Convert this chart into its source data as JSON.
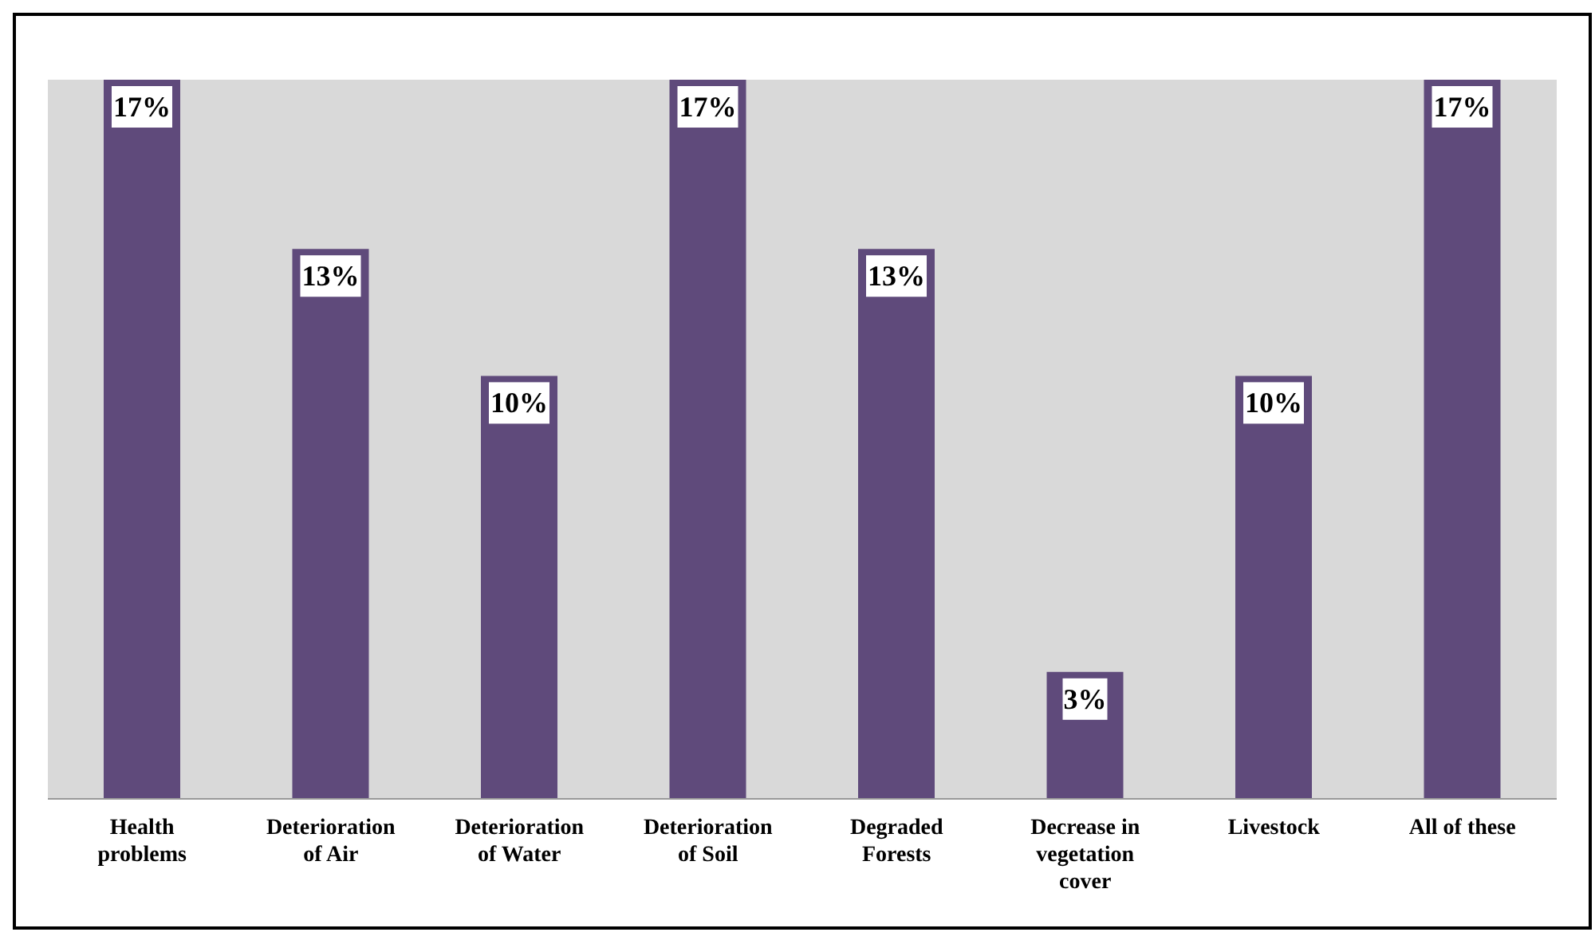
{
  "chart_data": {
    "type": "bar",
    "categories": [
      "Health problems",
      "Deterioration of Air",
      "Deterioration of Water",
      "Deterioration of Soil",
      "Degraded Forests",
      "Decrease in vegetation cover",
      "Livestock",
      "All of these"
    ],
    "values": [
      17,
      13,
      10,
      17,
      13,
      3,
      10,
      17
    ],
    "value_labels": [
      "17%",
      "13%",
      "10%",
      "17%",
      "13%",
      "3%",
      "10%",
      "17%"
    ],
    "color": "#5f4a7b",
    "grid": false
  }
}
